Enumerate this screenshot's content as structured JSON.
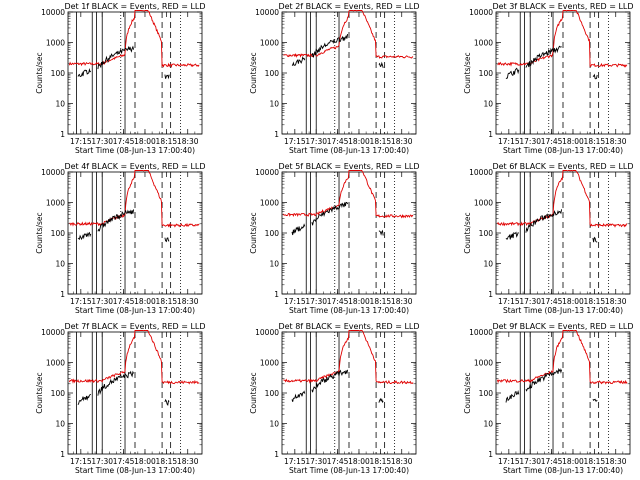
{
  "figure": {
    "start_time_label": "Start Time (08-Jun-13 17:00:40)",
    "ylabel": "Counts/sec",
    "xticks": [
      "17:15",
      "17:30",
      "17:45",
      "18:00",
      "18:15",
      "18:30"
    ],
    "yticks": [
      "1",
      "10",
      "100",
      "1000",
      "10000"
    ]
  },
  "chart_data": [
    {
      "type": "line",
      "title": "Det 1f BLACK = Events, RED = LLD",
      "xlabel": "Start Time (08-Jun-13 17:00:40)",
      "ylabel": "Counts/sec",
      "xlim": [
        "17:06",
        "18:40"
      ],
      "ylim": [
        1,
        10000
      ],
      "yscale": "log",
      "series_colors": {
        "events": "#000000",
        "lld": "#e00000"
      },
      "lld_baseline": 200,
      "events_baseline": 150,
      "solid_markers": [
        "17:12",
        "17:23",
        "17:26",
        "17:30",
        "17:46"
      ],
      "dashed_markers": [
        "17:53",
        "18:12",
        "18:18"
      ],
      "dotted_markers": [
        "17:43",
        "18:25"
      ]
    },
    {
      "type": "line",
      "title": "Det 2f BLACK = Events, RED = LLD",
      "xlabel": "Start Time (08-Jun-13 17:00:40)",
      "ylabel": "Counts/sec",
      "xlim": [
        "17:06",
        "18:40"
      ],
      "ylim": [
        1,
        10000
      ],
      "yscale": "log",
      "series_colors": {
        "events": "#000000",
        "lld": "#e00000"
      },
      "lld_baseline": 380,
      "events_baseline": 350,
      "solid_markers": [
        "17:23",
        "17:26",
        "17:30",
        "17:46"
      ],
      "dashed_markers": [
        "17:53",
        "18:12",
        "18:18"
      ],
      "dotted_markers": [
        "17:43",
        "18:25"
      ]
    },
    {
      "type": "line",
      "title": "Det 3f BLACK = Events, RED = LLD",
      "xlabel": "Start Time (08-Jun-13 17:00:40)",
      "ylabel": "Counts/sec",
      "xlim": [
        "17:06",
        "18:40"
      ],
      "ylim": [
        1,
        10000
      ],
      "yscale": "log",
      "series_colors": {
        "events": "#000000",
        "lld": "#e00000"
      },
      "lld_baseline": 200,
      "events_baseline": 150,
      "solid_markers": [
        "17:23",
        "17:26",
        "17:30",
        "17:46"
      ],
      "dashed_markers": [
        "17:53",
        "18:12",
        "18:18"
      ],
      "dotted_markers": [
        "17:43",
        "18:25"
      ]
    },
    {
      "type": "line",
      "title": "Det 4f BLACK = Events, RED = LLD",
      "xlabel": "Start Time (08-Jun-13 17:00:40)",
      "ylabel": "Counts/sec",
      "xlim": [
        "17:06",
        "18:40"
      ],
      "ylim": [
        1,
        10000
      ],
      "yscale": "log",
      "series_colors": {
        "events": "#000000",
        "lld": "#e00000"
      },
      "lld_baseline": 200,
      "events_baseline": 120,
      "solid_markers": [
        "17:12",
        "17:23",
        "17:26",
        "17:30",
        "17:46"
      ],
      "dashed_markers": [
        "17:53",
        "18:12",
        "18:18"
      ],
      "dotted_markers": [
        "17:43",
        "18:25"
      ]
    },
    {
      "type": "line",
      "title": "Det 5f BLACK = Events, RED = LLD",
      "xlabel": "Start Time (08-Jun-13 17:00:40)",
      "ylabel": "Counts/sec",
      "xlim": [
        "17:06",
        "18:40"
      ],
      "ylim": [
        1,
        10000
      ],
      "yscale": "log",
      "series_colors": {
        "events": "#000000",
        "lld": "#e00000"
      },
      "lld_baseline": 400,
      "events_baseline": 200,
      "solid_markers": [
        "17:23",
        "17:26",
        "17:30",
        "17:46"
      ],
      "dashed_markers": [
        "17:53",
        "18:12",
        "18:18"
      ],
      "dotted_markers": [
        "17:43",
        "18:25"
      ]
    },
    {
      "type": "line",
      "title": "Det 6f BLACK = Events, RED = LLD",
      "xlabel": "Start Time (08-Jun-13 17:00:40)",
      "ylabel": "Counts/sec",
      "xlim": [
        "17:06",
        "18:40"
      ],
      "ylim": [
        1,
        10000
      ],
      "yscale": "log",
      "series_colors": {
        "events": "#000000",
        "lld": "#e00000"
      },
      "lld_baseline": 200,
      "events_baseline": 120,
      "solid_markers": [
        "17:23",
        "17:26",
        "17:30",
        "17:46"
      ],
      "dashed_markers": [
        "17:53",
        "18:12",
        "18:18"
      ],
      "dotted_markers": [
        "17:43",
        "18:25"
      ]
    },
    {
      "type": "line",
      "title": "Det 7f BLACK = Events, RED = LLD",
      "xlabel": "Start Time (08-Jun-13 17:00:40)",
      "ylabel": "Counts/sec",
      "xlim": [
        "17:06",
        "18:40"
      ],
      "ylim": [
        1,
        10000
      ],
      "yscale": "log",
      "series_colors": {
        "events": "#000000",
        "lld": "#e00000"
      },
      "lld_baseline": 250,
      "events_baseline": 100,
      "solid_markers": [
        "17:12",
        "17:23",
        "17:26",
        "17:30",
        "17:46"
      ],
      "dashed_markers": [
        "17:53",
        "18:12",
        "18:18"
      ],
      "dotted_markers": [
        "17:43",
        "18:25"
      ]
    },
    {
      "type": "line",
      "title": "Det 8f BLACK = Events, RED = LLD",
      "xlabel": "Start Time (08-Jun-13 17:00:40)",
      "ylabel": "Counts/sec",
      "xlim": [
        "17:06",
        "18:40"
      ],
      "ylim": [
        1,
        10000
      ],
      "yscale": "log",
      "series_colors": {
        "events": "#000000",
        "lld": "#e00000"
      },
      "lld_baseline": 250,
      "events_baseline": 120,
      "solid_markers": [
        "17:23",
        "17:26",
        "17:30",
        "17:46"
      ],
      "dashed_markers": [
        "17:53",
        "18:12",
        "18:18"
      ],
      "dotted_markers": [
        "17:43",
        "18:25"
      ]
    },
    {
      "type": "line",
      "title": "Det 9f BLACK = Events, RED = LLD",
      "xlabel": "Start Time (08-Jun-13 17:00:40)",
      "ylabel": "Counts/sec",
      "xlim": [
        "17:06",
        "18:40"
      ],
      "ylim": [
        1,
        10000
      ],
      "yscale": "log",
      "series_colors": {
        "events": "#000000",
        "lld": "#e00000"
      },
      "lld_baseline": 250,
      "events_baseline": 120,
      "solid_markers": [
        "17:23",
        "17:26",
        "17:30",
        "17:46"
      ],
      "dashed_markers": [
        "17:53",
        "18:12",
        "18:18"
      ],
      "dotted_markers": [
        "17:43",
        "18:25"
      ]
    }
  ]
}
